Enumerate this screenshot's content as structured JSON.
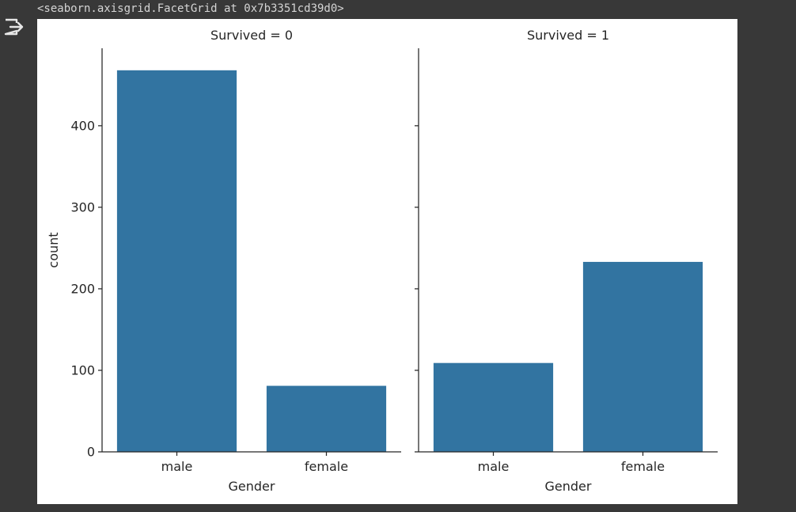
{
  "cell_output": {
    "repr_text": "<seaborn.axisgrid.FacetGrid at 0x7b3351cd39d0>",
    "icon": "output-redirect-icon"
  },
  "chart_data": {
    "type": "bar",
    "facet_variable": "Survived",
    "xlabel": "Gender",
    "ylabel": "count",
    "ylim": [
      0,
      495
    ],
    "yticks": [
      0,
      100,
      200,
      300,
      400
    ],
    "categories": [
      "male",
      "female"
    ],
    "bar_color": "#3274a1",
    "grid": false,
    "panels": [
      {
        "title": "Survived = 0",
        "values": [
          468,
          81
        ]
      },
      {
        "title": "Survived = 1",
        "values": [
          109,
          233
        ]
      }
    ]
  }
}
